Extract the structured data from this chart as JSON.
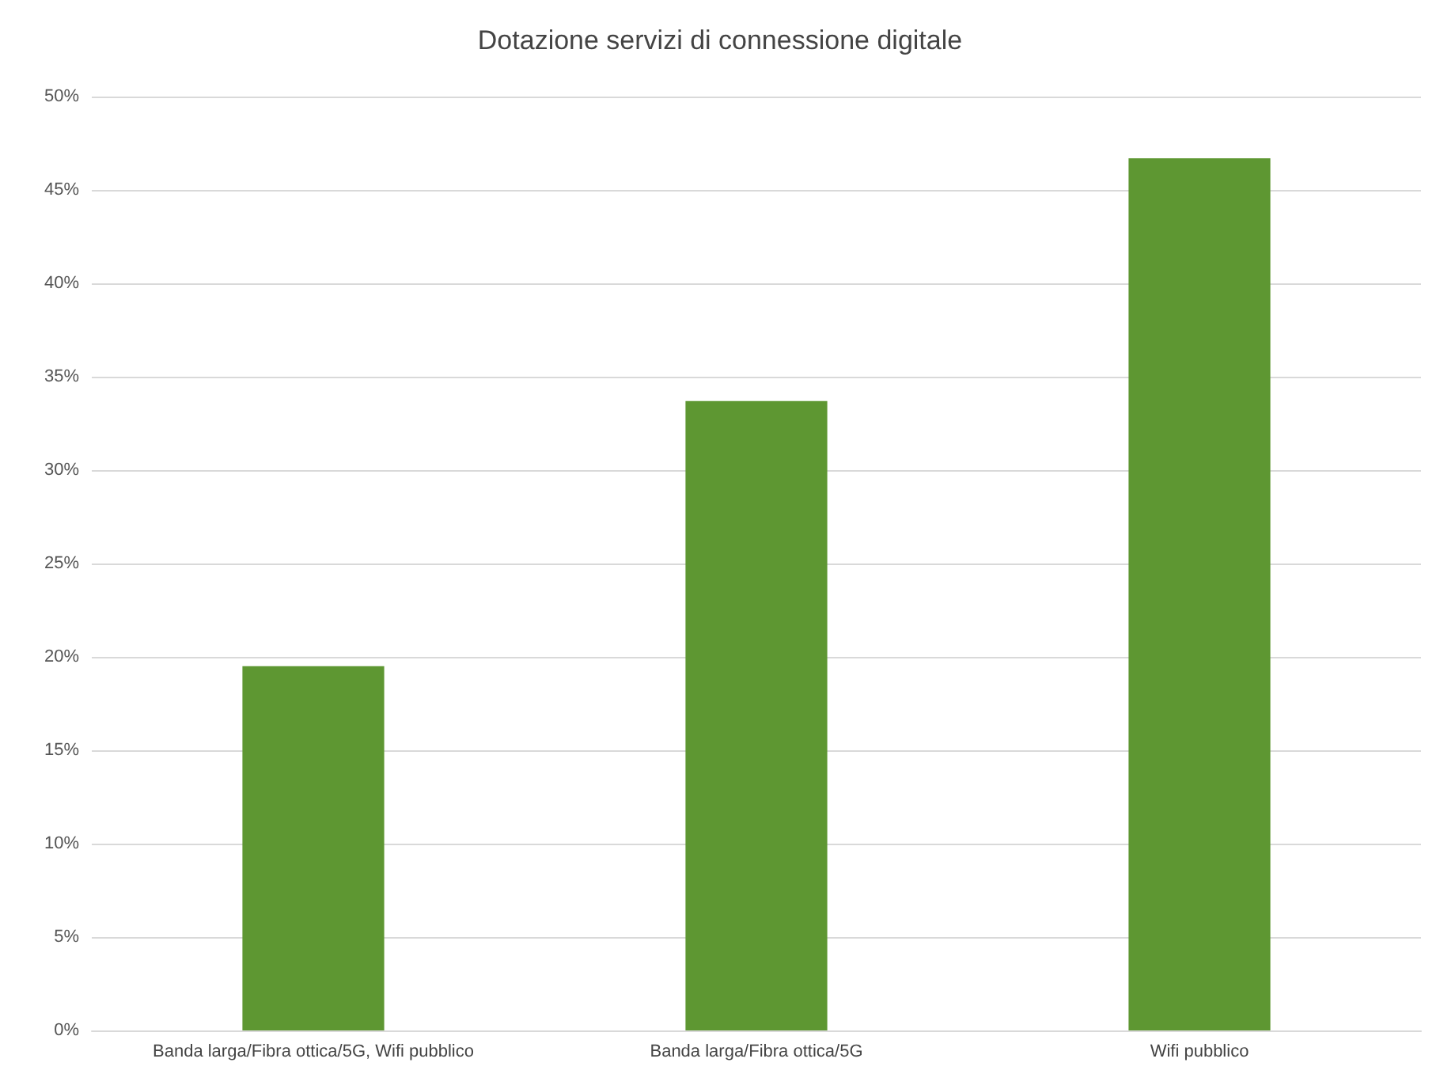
{
  "chart_data": {
    "type": "bar",
    "title": "Dotazione servizi di connessione digitale",
    "categories": [
      "Banda larga/Fibra ottica/5G, Wifi pubblico",
      "Banda larga/Fibra ottica/5G",
      "Wifi pubblico"
    ],
    "values": [
      19.5,
      33.7,
      46.7
    ],
    "color": "#5e9732",
    "ylim": [
      0,
      50
    ],
    "yticks": [
      {
        "value": 0,
        "label": "0%"
      },
      {
        "value": 5,
        "label": "5%"
      },
      {
        "value": 10,
        "label": "10%"
      },
      {
        "value": 15,
        "label": "15%"
      },
      {
        "value": 20,
        "label": "20%"
      },
      {
        "value": 25,
        "label": "25%"
      },
      {
        "value": 30,
        "label": "30%"
      },
      {
        "value": 35,
        "label": "35%"
      },
      {
        "value": 40,
        "label": "40%"
      },
      {
        "value": 45,
        "label": "45%"
      },
      {
        "value": 50,
        "label": "50%"
      }
    ],
    "grid": "y"
  }
}
